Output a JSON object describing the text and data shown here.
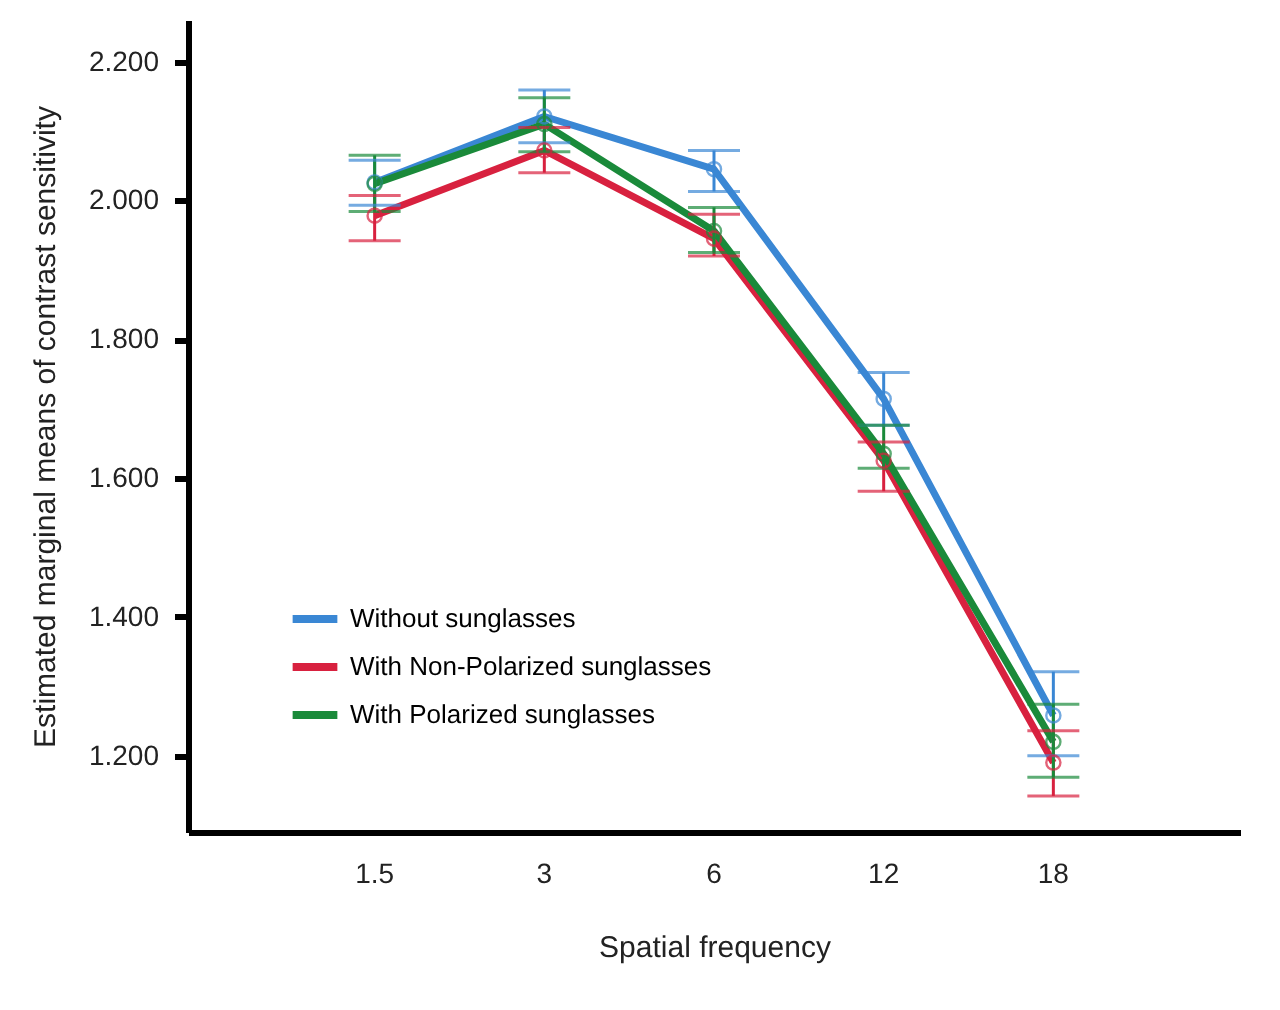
{
  "chart_data": {
    "type": "line",
    "xlabel": "Spatial frequency",
    "ylabel": "Estimated marginal means of contrast sensitivity",
    "categories": [
      "1.5",
      "3",
      "6",
      "12",
      "18"
    ],
    "series": [
      {
        "name": "Without sunglasses",
        "color": "#3a87d4",
        "values": [
          2.026,
          2.121,
          2.045,
          1.714,
          1.258
        ],
        "errors": [
          [
            1.993,
            2.058
          ],
          [
            2.083,
            2.159
          ],
          [
            2.013,
            2.072
          ],
          [
            1.676,
            1.752
          ],
          [
            1.2,
            1.321
          ]
        ]
      },
      {
        "name": "With Non-Polarized sunglasses",
        "color": "#d8213f",
        "values": [
          1.978,
          2.072,
          1.945,
          1.625,
          1.19
        ],
        "errors": [
          [
            1.942,
            2.007
          ],
          [
            2.04,
            2.105
          ],
          [
            1.92,
            1.98
          ],
          [
            1.581,
            1.652
          ],
          [
            1.142,
            1.236
          ]
        ]
      },
      {
        "name": "With Polarized sunglasses",
        "color": "#1a8a3a",
        "values": [
          2.024,
          2.11,
          1.956,
          1.635,
          1.22
        ],
        "errors": [
          [
            1.984,
            2.065
          ],
          [
            2.07,
            2.148
          ],
          [
            1.925,
            1.99
          ],
          [
            1.614,
            1.676
          ],
          [
            1.169,
            1.274
          ]
        ]
      }
    ],
    "ylim": [
      1.09,
      2.26
    ],
    "yticks": [
      {
        "value": 1.2,
        "label": "1.200"
      },
      {
        "value": 1.4,
        "label": "1.400"
      },
      {
        "value": 1.6,
        "label": "1.600"
      },
      {
        "value": 1.8,
        "label": "1.800"
      },
      {
        "value": 2.0,
        "label": "2.000"
      },
      {
        "value": 2.2,
        "label": "2.200"
      }
    ],
    "grid": false,
    "legend": "bottom left",
    "marker": "circle",
    "line_style": "solid"
  }
}
